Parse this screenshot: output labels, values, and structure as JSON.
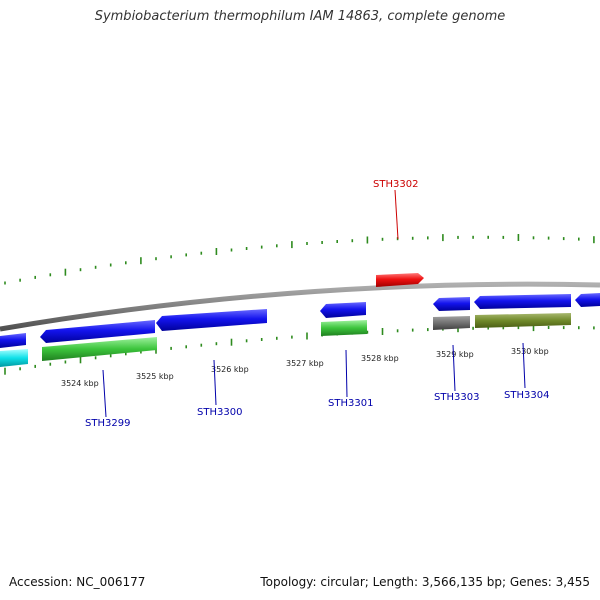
{
  "title": "Symbiobacterium thermophilum IAM 14863, complete genome",
  "footer": {
    "accession": "Accession: NC_006177",
    "summary": "Topology: circular; Length: 3,566,135 bp; Genes: 3,455"
  },
  "colors": {
    "backbone": "#808080",
    "tick_green": "#2e8b1e",
    "label_red": "#cc0000",
    "label_blue": "#0000aa"
  },
  "kbp_ticks": [
    "3524 kbp",
    "3525 kbp",
    "3526 kbp",
    "3527 kbp",
    "3528 kbp",
    "3529 kbp",
    "3530 kbp"
  ],
  "gene_labels": [
    {
      "text": "STH3302",
      "color": "#cc0000"
    },
    {
      "text": "STH3299",
      "color": "#0000aa"
    },
    {
      "text": "STH3300",
      "color": "#0000aa"
    },
    {
      "text": "STH3301",
      "color": "#0000aa"
    },
    {
      "text": "STH3303",
      "color": "#0000aa"
    },
    {
      "text": "STH3304",
      "color": "#0000aa"
    }
  ]
}
